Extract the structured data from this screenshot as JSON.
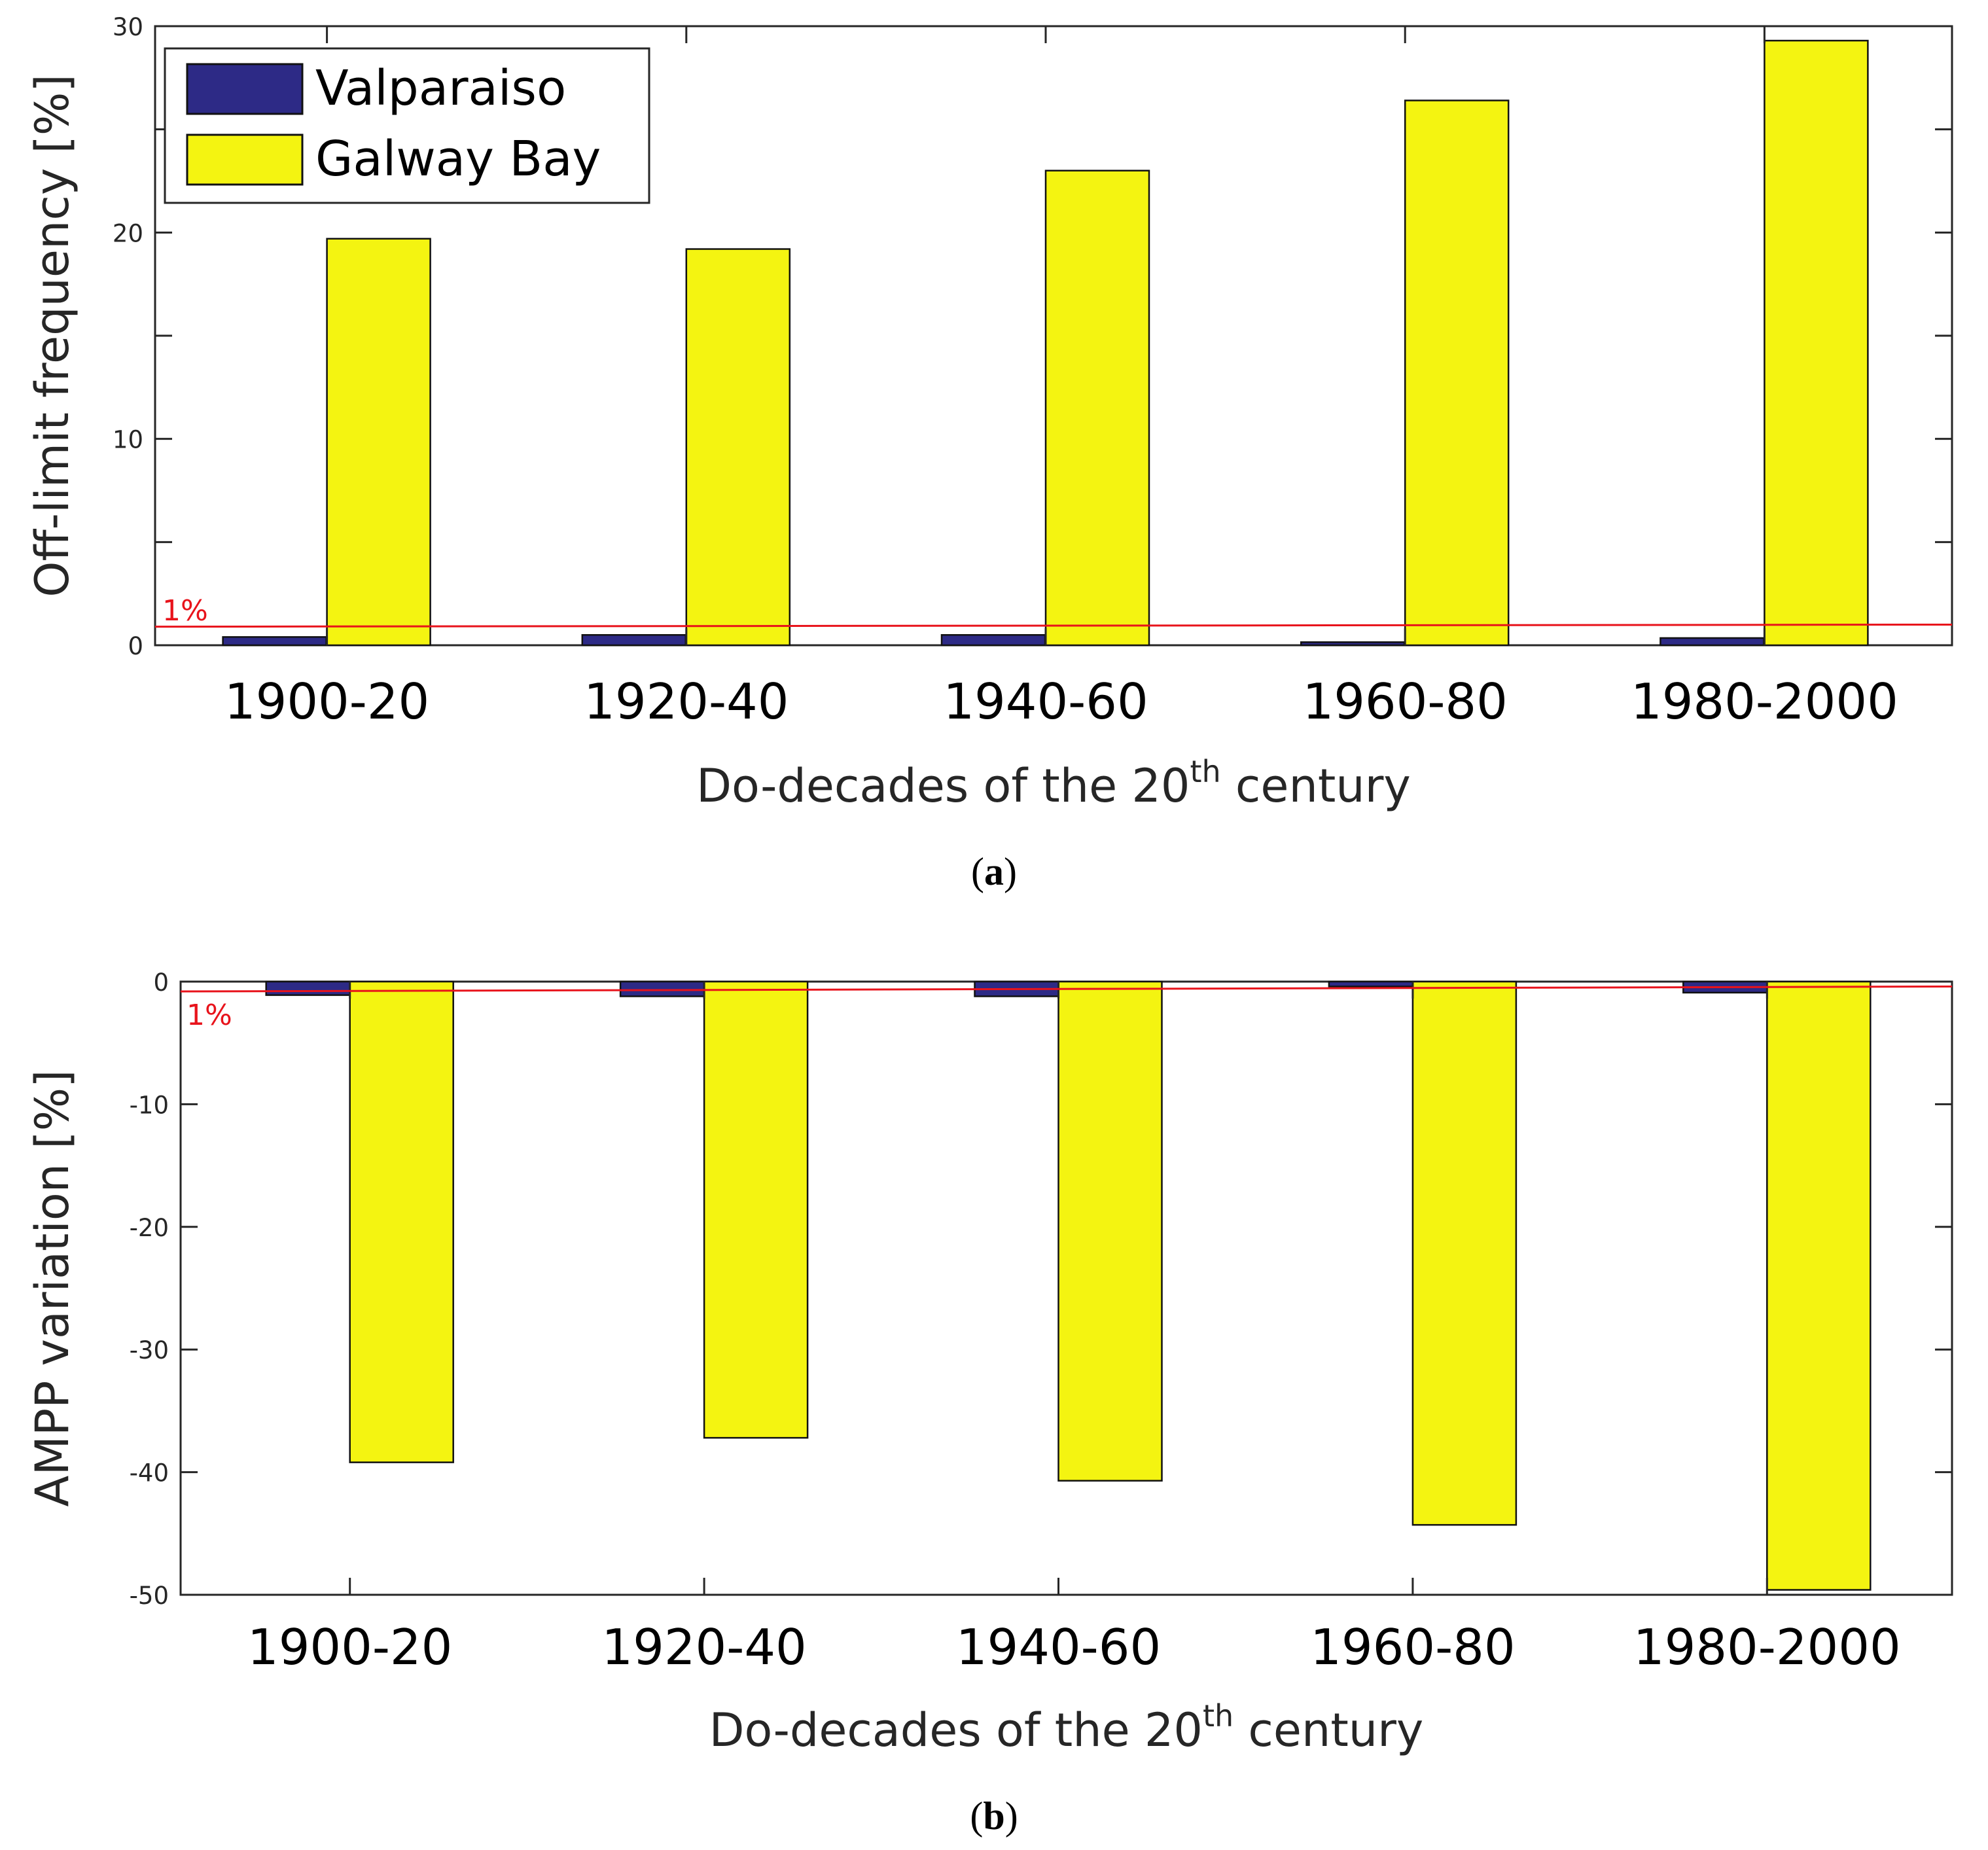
{
  "colors": {
    "valparaiso": "#2d2a86",
    "galway": "#f4f411",
    "reference": "#e8131b",
    "axis": "#262626"
  },
  "chart_data": [
    {
      "panel": "(a)",
      "panel_letter": "a",
      "type": "bar",
      "ylabel": "Off-limit frequency [%]",
      "xlabel_prefix": "Do-decades of the 20",
      "xlabel_sup": "th",
      "xlabel_suffix": " century",
      "categories": [
        "1900-20",
        "1920-40",
        "1940-60",
        "1960-80",
        "1980-2000"
      ],
      "series": [
        {
          "name": "Valparaiso",
          "values": [
            0.4,
            0.5,
            0.5,
            0.15,
            0.35
          ]
        },
        {
          "name": "Galway Bay",
          "values": [
            19.7,
            19.2,
            23.0,
            26.4,
            29.3
          ]
        }
      ],
      "ylim": [
        0,
        30
      ],
      "yticks": [
        0,
        5,
        10,
        15,
        20,
        25,
        30
      ],
      "ytick_labels": [
        "0",
        "",
        "10",
        "",
        "20",
        "",
        "30"
      ],
      "reference_line": {
        "label": "1%",
        "y_start": 0.9,
        "y_end": 1.0
      },
      "legend": {
        "position": "top-left",
        "entries": [
          "Valparaiso",
          "Galway Bay"
        ]
      }
    },
    {
      "panel": "(b)",
      "panel_letter": "b",
      "type": "bar",
      "ylabel": "AMPP variation [%]",
      "xlabel_prefix": "Do-decades of the 20",
      "xlabel_sup": "th",
      "xlabel_suffix": " century",
      "categories": [
        "1900-20",
        "1920-40",
        "1940-60",
        "1960-80",
        "1980-2000"
      ],
      "series": [
        {
          "name": "Valparaiso",
          "values": [
            -1.1,
            -1.2,
            -1.2,
            -0.4,
            -0.9
          ]
        },
        {
          "name": "Galway Bay",
          "values": [
            -39.2,
            -37.2,
            -40.7,
            -44.3,
            -49.6
          ]
        }
      ],
      "ylim": [
        -50,
        0
      ],
      "yticks": [
        -50,
        -40,
        -30,
        -20,
        -10,
        0
      ],
      "ytick_labels": [
        "-50",
        "-40",
        "-30",
        "-20",
        "-10",
        "0"
      ],
      "reference_line": {
        "label": "1%",
        "y_start": -0.8,
        "y_end": -0.4
      }
    }
  ]
}
